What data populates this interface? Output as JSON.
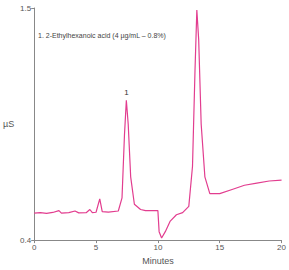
{
  "chart_data": {
    "type": "line",
    "x_label": "Minutes",
    "y_label": "µS",
    "annotations": [
      {
        "text": "1. 2-Ethylhexanoic acid (4 µg/mL – 0.8%)"
      },
      {
        "text": "1",
        "x": 7.45,
        "y": 1.063
      }
    ],
    "color": "#e23d8f",
    "x": [
      0,
      0.5,
      1,
      1.5,
      2,
      2.2,
      2.8,
      3.3,
      3.6,
      4.2,
      4.5,
      4.7,
      5.0,
      5.3,
      5.5,
      6,
      6.8,
      7.1,
      7.3,
      7.45,
      7.6,
      7.8,
      8.1,
      8.6,
      9,
      9.5,
      10,
      10.1,
      10.3,
      10.6,
      11,
      11.5,
      12,
      12.5,
      12.8,
      13.0,
      13.15,
      13.3,
      13.5,
      13.8,
      14.2,
      15,
      16,
      17,
      18,
      19,
      20
    ],
    "values": [
      0.528,
      0.53,
      0.527,
      0.531,
      0.54,
      0.528,
      0.53,
      0.538,
      0.529,
      0.53,
      0.545,
      0.53,
      0.532,
      0.595,
      0.535,
      0.533,
      0.538,
      0.6,
      0.9,
      1.063,
      0.95,
      0.7,
      0.57,
      0.545,
      0.54,
      0.54,
      0.54,
      0.44,
      0.41,
      0.44,
      0.49,
      0.52,
      0.53,
      0.56,
      0.75,
      1.2,
      1.49,
      1.35,
      0.95,
      0.7,
      0.62,
      0.62,
      0.64,
      0.66,
      0.67,
      0.68,
      0.684
    ],
    "xlim": [
      0,
      20
    ],
    "xticks": [
      0,
      5,
      10,
      15,
      20
    ],
    "ylim": [
      0.4,
      1.5
    ],
    "yticks": [
      0.4,
      1.5
    ],
    "grid": false
  }
}
